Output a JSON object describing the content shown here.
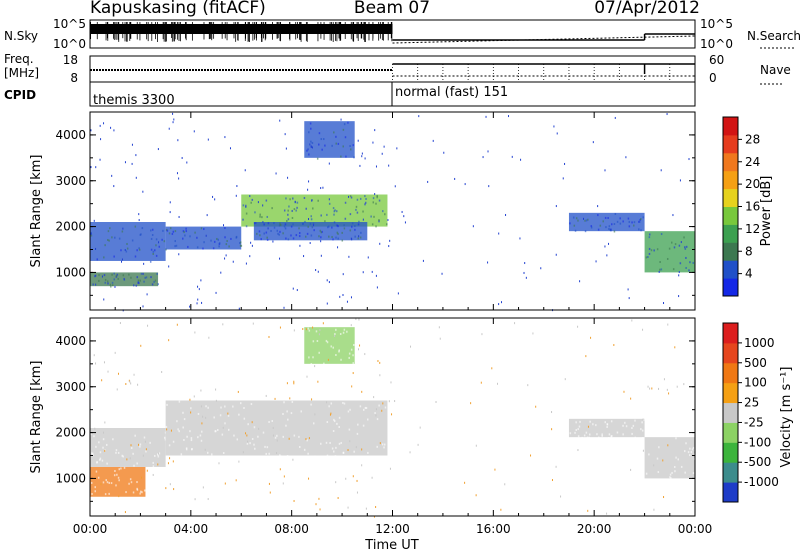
{
  "header": {
    "station": "Kapuskasing (fitACF)",
    "beam": "Beam 07",
    "date": "07/Apr/2012"
  },
  "nsky_panel": {
    "left_label": "N.Sky",
    "right_label": "N.Search",
    "left_ticks": [
      "10^5",
      "10^0"
    ],
    "right_ticks": [
      "10^5",
      "10^0"
    ]
  },
  "freq_panel": {
    "left_label_1": "Freq.",
    "left_label_2": "[MHz]",
    "left_ticks": [
      "18",
      "8"
    ],
    "right_label": "Nave",
    "right_ticks": [
      "60",
      "0"
    ]
  },
  "cpid_panel": {
    "label": "CPID",
    "segments": [
      {
        "text": "themis 3300",
        "start_hour": 0,
        "end_hour": 12
      },
      {
        "text": "normal (fast) 151",
        "start_hour": 12,
        "end_hour": 24
      }
    ]
  },
  "time_axis": {
    "title": "Time UT",
    "tick_labels": [
      "00:00",
      "04:00",
      "08:00",
      "12:00",
      "16:00",
      "20:00",
      "00:00"
    ]
  },
  "chart_data": [
    {
      "type": "heatmap",
      "name": "power",
      "ylabel": "Slant Range [km]",
      "ylim": [
        180,
        4500
      ],
      "yticks": [
        1000,
        2000,
        3000,
        4000
      ],
      "xlim_hours": [
        0,
        24
      ],
      "colorbar": {
        "label": "Power [dB]",
        "range": [
          0,
          32
        ],
        "tick_values": [
          4,
          8,
          12,
          16,
          20,
          24,
          28
        ],
        "colors": [
          "#1428e6",
          "#2050c8",
          "#3c7850",
          "#3ca050",
          "#78c83c",
          "#e6d21e",
          "#f5a014",
          "#f0781e",
          "#e63c1e",
          "#d21414"
        ]
      },
      "echo_bands": [
        {
          "t0": 0.0,
          "t1": 3.0,
          "r0": 1250,
          "r1": 2100,
          "level": 6
        },
        {
          "t0": 0.0,
          "t1": 2.7,
          "r0": 700,
          "r1": 1000,
          "level": 9
        },
        {
          "t0": 3.0,
          "t1": 6.0,
          "r0": 1500,
          "r1": 2000,
          "level": 5
        },
        {
          "t0": 6.0,
          "t1": 11.8,
          "r0": 2000,
          "r1": 2700,
          "level": 13
        },
        {
          "t0": 6.5,
          "t1": 11.0,
          "r0": 1700,
          "r1": 2100,
          "level": 6
        },
        {
          "t0": 8.5,
          "t1": 10.5,
          "r0": 3500,
          "r1": 4300,
          "level": 5
        },
        {
          "t0": 19.0,
          "t1": 22.0,
          "r0": 1900,
          "r1": 2300,
          "level": 4
        },
        {
          "t0": 22.0,
          "t1": 24.0,
          "r0": 1000,
          "r1": 1900,
          "level": 10
        }
      ]
    },
    {
      "type": "heatmap",
      "name": "velocity",
      "ylabel": "Slant Range [km]",
      "ylim": [
        180,
        4500
      ],
      "yticks": [
        1000,
        2000,
        3000,
        4000
      ],
      "xlim_hours": [
        0,
        24
      ],
      "colorbar": {
        "label": "Velocity [m s⁻¹]",
        "range": [
          -1500,
          1500
        ],
        "tick_labels": [
          "1000",
          "500",
          "100",
          "25",
          "-25",
          "-100",
          "-500",
          "-1000"
        ],
        "colors": [
          "#1e3cc8",
          "#3c8c8c",
          "#3cb43c",
          "#8cd264",
          "#c8c8c8",
          "#f5a014",
          "#f07814",
          "#e6461e",
          "#dc1e1e"
        ]
      },
      "echo_bands": [
        {
          "t0": 0.0,
          "t1": 2.2,
          "r0": 600,
          "r1": 1250,
          "color": "#f07814"
        },
        {
          "t0": 0.0,
          "t1": 3.0,
          "r0": 1250,
          "r1": 2100,
          "color": "#c8c8c8"
        },
        {
          "t0": 3.0,
          "t1": 11.8,
          "r0": 1500,
          "r1": 2700,
          "color": "#c8c8c8"
        },
        {
          "t0": 8.5,
          "t1": 10.5,
          "r0": 3500,
          "r1": 4300,
          "color": "#8cd264"
        },
        {
          "t0": 19.0,
          "t1": 22.0,
          "r0": 1900,
          "r1": 2300,
          "color": "#c8c8c8"
        },
        {
          "t0": 22.0,
          "t1": 24.0,
          "r0": 1000,
          "r1": 1900,
          "color": "#c8c8c8"
        }
      ]
    }
  ]
}
